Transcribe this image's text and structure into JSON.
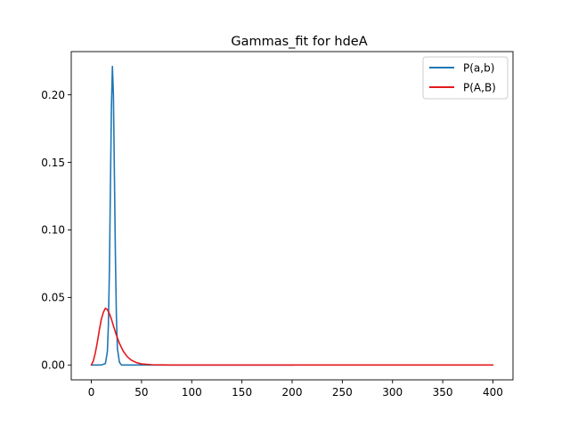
{
  "chart_data": {
    "type": "line",
    "title": "Gammas_fit for hdeA",
    "xlabel": "",
    "ylabel": "",
    "xlim": [
      -20,
      420
    ],
    "ylim": [
      -0.011,
      0.232
    ],
    "xticks": [
      0,
      50,
      100,
      150,
      200,
      250,
      300,
      350,
      400
    ],
    "yticks": [
      0.0,
      0.05,
      0.1,
      0.15,
      0.2
    ],
    "ytick_labels": [
      "0.00",
      "0.05",
      "0.10",
      "0.15",
      "0.20"
    ],
    "legend_position": "top-right",
    "grid": false,
    "series": [
      {
        "name": "P(a,b)",
        "color": "#1f77b4",
        "x": [
          0,
          10,
          14,
          16,
          17,
          18,
          19,
          20,
          21,
          22,
          23,
          24,
          25,
          26,
          28,
          30,
          40,
          100,
          200,
          202
        ],
        "y": [
          0,
          0,
          0.001,
          0.01,
          0.03,
          0.07,
          0.13,
          0.19,
          0.221,
          0.2,
          0.14,
          0.08,
          0.035,
          0.012,
          0.002,
          0,
          0,
          0,
          0,
          0
        ]
      },
      {
        "name": "P(A,B)",
        "color": "#e41a1c",
        "x": [
          0,
          2,
          4,
          6,
          8,
          10,
          12,
          14,
          16,
          18,
          20,
          22,
          25,
          28,
          32,
          36,
          40,
          45,
          50,
          60,
          70,
          80,
          100,
          150,
          200,
          300,
          400
        ],
        "y": [
          0,
          0.003,
          0.009,
          0.017,
          0.026,
          0.034,
          0.039,
          0.042,
          0.041,
          0.038,
          0.034,
          0.029,
          0.022,
          0.016,
          0.01,
          0.006,
          0.0035,
          0.0017,
          0.0008,
          0.0002,
          5e-05,
          0,
          0,
          0,
          0,
          0,
          0
        ]
      }
    ]
  }
}
